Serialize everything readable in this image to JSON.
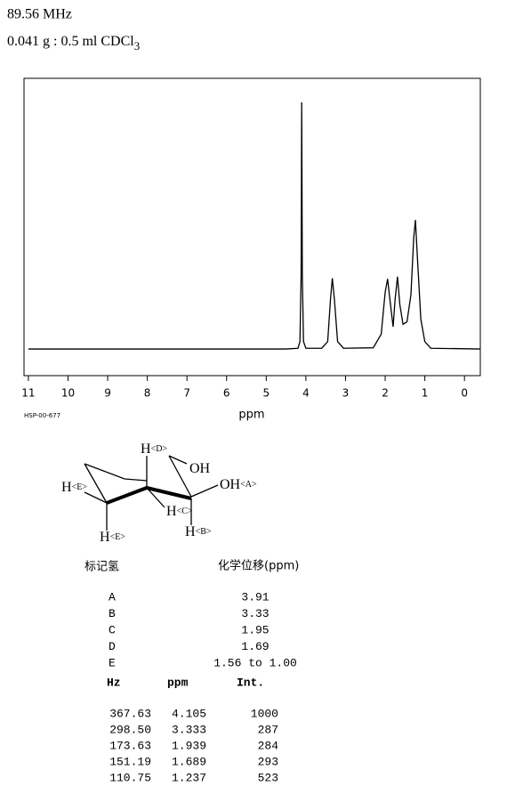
{
  "header": {
    "frequency": "89.56 MHz",
    "sample": "0.041 g : 0.5 ml CDCl",
    "sample_subscript": "3"
  },
  "chart_data": {
    "type": "line",
    "xlabel": "ppm",
    "code": "HSP-00-677",
    "color": "#000000",
    "xlim": [
      11.11,
      -0.4
    ],
    "ylim": [
      -108,
      1097
    ],
    "xticks": [
      11,
      10,
      9,
      8,
      7,
      6,
      5,
      4,
      3,
      2,
      1,
      0
    ],
    "x": [
      11,
      4.5,
      4.2,
      4.15,
      4.12,
      4.105,
      4.09,
      4.06,
      4.0,
      3.6,
      3.45,
      3.38,
      3.333,
      3.28,
      3.2,
      3.05,
      2.3,
      2.1,
      2.0,
      1.939,
      1.88,
      1.8,
      1.75,
      1.689,
      1.63,
      1.55,
      1.45,
      1.35,
      1.28,
      1.237,
      1.18,
      1.1,
      1.0,
      0.85,
      -0.4
    ],
    "values": [
      0,
      0,
      3,
      30,
      300,
      1000,
      300,
      30,
      3,
      3,
      30,
      200,
      287,
      200,
      30,
      3,
      5,
      60,
      230,
      284,
      200,
      90,
      200,
      293,
      180,
      100,
      110,
      220,
      450,
      523,
      350,
      120,
      30,
      3,
      0
    ]
  },
  "structure": {
    "labels": [
      {
        "atom": "H",
        "tag": "<D>"
      },
      {
        "atom": "OH",
        "tag": ""
      },
      {
        "atom": "OH",
        "tag": "<A>"
      },
      {
        "atom": "H",
        "tag": "<E>"
      },
      {
        "atom": "H",
        "tag": "<C>"
      },
      {
        "atom": "H",
        "tag": "<E>"
      },
      {
        "atom": "H",
        "tag": "<B>"
      }
    ]
  },
  "assignment_table": {
    "headers": [
      "标记氢",
      "化学位移(ppm)"
    ],
    "rows": [
      [
        "A",
        "3.91"
      ],
      [
        "B",
        "3.33"
      ],
      [
        "C",
        "1.95"
      ],
      [
        "D",
        "1.69"
      ],
      [
        "E",
        "1.56 to 1.00"
      ]
    ]
  },
  "peak_table": {
    "headers": [
      "Hz",
      "ppm",
      "Int."
    ],
    "rows": [
      [
        "367.63",
        "4.105",
        "1000"
      ],
      [
        "298.50",
        "3.333",
        "287"
      ],
      [
        "173.63",
        "1.939",
        "284"
      ],
      [
        "151.19",
        "1.689",
        "293"
      ],
      [
        "110.75",
        "1.237",
        "523"
      ]
    ]
  }
}
